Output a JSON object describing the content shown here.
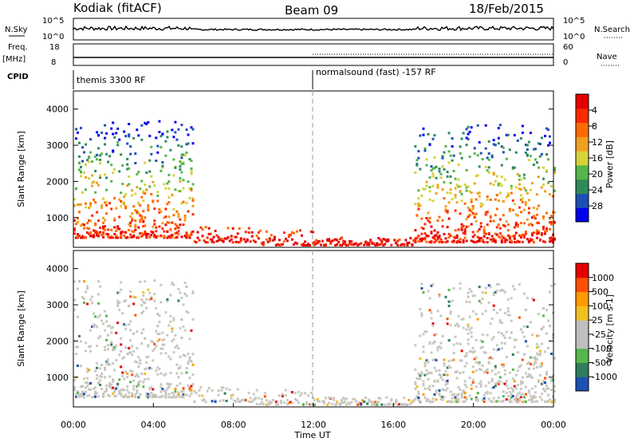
{
  "header": {
    "station": "Kodiak (fitACF)",
    "beam": "Beam 09",
    "date": "18/Feb/2015"
  },
  "strip_panels": {
    "nsky_label": "N.Sky",
    "nsearch_label": "N.Search",
    "freq_label": "Freq.",
    "freq_unit": "[MHz]",
    "nave_label": "Nave",
    "cpid_label": "CPID",
    "nsky_ticks": [
      "10^5",
      "10^0"
    ],
    "nsearch_ticks": [
      "10^5",
      "10^0"
    ],
    "freq_ticks": [
      "18",
      "8"
    ],
    "nave_ticks": [
      "60",
      "0"
    ]
  },
  "cpid_segments": [
    {
      "label": "themis 3300 RF",
      "start_hour": 0
    },
    {
      "label": "normalsound (fast) -157 RF",
      "start_hour": 12
    }
  ],
  "colors": {
    "power_scale": [
      "#0000ee",
      "#1e50b4",
      "#2f8a5a",
      "#55b64a",
      "#d6d23a",
      "#f0a020",
      "#ff6a00",
      "#ff2a00",
      "#e60000"
    ],
    "velocity_scale": [
      "#1e50b4",
      "#2f7d5a",
      "#55b64a",
      "#bfbfbf",
      "#bfbfbf",
      "#f0c020",
      "#ff9a00",
      "#ff5000",
      "#e60000"
    ]
  },
  "chart_data": [
    {
      "type": "heatmap",
      "title": "Kodiak (fitACF) Beam 09 18/Feb/2015",
      "xlabel": "Time UT",
      "ylabel": "Slant Range [km]",
      "x_ticks": [
        "00:00",
        "04:00",
        "08:00",
        "12:00",
        "16:00",
        "20:00",
        "00:00"
      ],
      "xlim_hours": [
        0,
        24
      ],
      "ylim": [
        180,
        4500
      ],
      "y_ticks": [
        1000,
        2000,
        3000,
        4000
      ],
      "colorbar": {
        "label": "Power [dB]",
        "ticks": [
          "4",
          "8",
          "12",
          "16",
          "20",
          "24",
          "28"
        ],
        "range": [
          0,
          30
        ]
      }
    },
    {
      "type": "heatmap",
      "xlabel": "Time UT",
      "ylabel": "Slant Range [km]",
      "x_ticks": [
        "00:00",
        "04:00",
        "08:00",
        "12:00",
        "16:00",
        "20:00",
        "00:00"
      ],
      "xlim_hours": [
        0,
        24
      ],
      "ylim": [
        180,
        4500
      ],
      "y_ticks": [
        1000,
        2000,
        3000,
        4000
      ],
      "colorbar": {
        "label": "Velocity [m s-1]",
        "ticks": [
          "1000",
          "500",
          "100",
          "25",
          "-25",
          "-100",
          "-500",
          "-1000"
        ],
        "range": [
          -1000,
          1000
        ]
      }
    }
  ]
}
